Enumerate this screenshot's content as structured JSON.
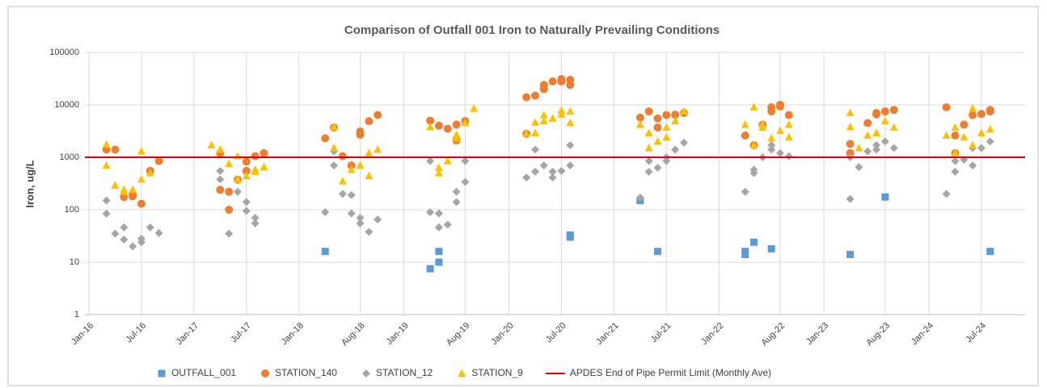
{
  "chart_data": {
    "type": "scatter",
    "title": "Comparison of Outfall 001 Iron to Naturally Prevailing Conditions",
    "y_label": "Iron, ug/L",
    "log_y": true,
    "grid": true,
    "legend": "bottom",
    "ylim": [
      1,
      100000
    ],
    "yticks": [
      1,
      10,
      100,
      1000,
      10000,
      100000
    ],
    "xlim": [
      "2016-01",
      "2024-12"
    ],
    "xticks": [
      {
        "value": "2016-01",
        "label": "Jan-16"
      },
      {
        "value": "2016-07",
        "label": "Jul-16"
      },
      {
        "value": "2017-01",
        "label": "Jan-17"
      },
      {
        "value": "2017-07",
        "label": "Jul-17"
      },
      {
        "value": "2018-01",
        "label": "Jan-18"
      },
      {
        "value": "2018-08",
        "label": "Aug-18"
      },
      {
        "value": "2019-01",
        "label": "Jan-19"
      },
      {
        "value": "2019-08",
        "label": "Aug-19"
      },
      {
        "value": "2020-01",
        "label": "Jan-20"
      },
      {
        "value": "2020-07",
        "label": "Jul-20"
      },
      {
        "value": "2021-01",
        "label": "Jan-21"
      },
      {
        "value": "2021-07",
        "label": "Jul-21"
      },
      {
        "value": "2022-01",
        "label": "Jan-22"
      },
      {
        "value": "2022-08",
        "label": "Aug-22"
      },
      {
        "value": "2023-01",
        "label": "Jan-23"
      },
      {
        "value": "2023-08",
        "label": "Aug-23"
      },
      {
        "value": "2024-01",
        "label": "Jan-24"
      },
      {
        "value": "2024-07",
        "label": "Jul-24"
      }
    ],
    "series": [
      {
        "name": "OUTFALL_001",
        "color": "#5b9bd5",
        "marker": "square",
        "x": [
          "2018-04",
          "2019-04",
          "2019-05",
          "2019-05",
          "2020-08",
          "2020-08",
          "2021-04",
          "2021-06",
          "2022-04",
          "2022-04",
          "2022-05",
          "2022-07",
          "2023-04",
          "2023-08",
          "2024-08"
        ],
        "values": [
          16,
          7.5,
          10,
          16,
          30,
          33,
          150,
          16,
          16,
          14,
          24,
          18,
          14,
          175,
          16
        ]
      },
      {
        "name": "STATION_140",
        "color": "#ed7d31",
        "marker": "circle",
        "x": [
          "2016-03",
          "2016-04",
          "2016-05",
          "2016-06",
          "2016-06",
          "2016-07",
          "2016-08",
          "2016-08",
          "2016-09",
          "2017-04",
          "2017-04",
          "2017-05",
          "2017-05",
          "2017-06",
          "2017-07",
          "2017-07",
          "2017-08",
          "2017-09",
          "2018-04",
          "2018-05",
          "2018-06",
          "2018-07",
          "2018-08",
          "2018-08",
          "2018-09",
          "2018-10",
          "2019-04",
          "2019-05",
          "2019-06",
          "2019-07",
          "2019-07",
          "2019-08",
          "2020-03",
          "2020-03",
          "2020-04",
          "2020-05",
          "2020-05",
          "2020-06",
          "2020-07",
          "2020-07",
          "2020-08",
          "2020-08",
          "2021-04",
          "2021-05",
          "2021-06",
          "2021-06",
          "2021-07",
          "2021-08",
          "2021-09",
          "2022-04",
          "2022-05",
          "2022-06",
          "2022-07",
          "2022-07",
          "2022-08",
          "2022-08",
          "2022-09",
          "2023-04",
          "2023-04",
          "2023-06",
          "2023-07",
          "2023-07",
          "2023-08",
          "2023-09",
          "2024-03",
          "2024-04",
          "2024-04",
          "2024-05",
          "2024-06",
          "2024-07",
          "2024-08",
          "2024-08"
        ],
        "values": [
          1400,
          1400,
          175,
          200,
          180,
          130,
          550,
          550,
          850,
          1200,
          240,
          220,
          100,
          375,
          550,
          830,
          1050,
          1200,
          2300,
          3700,
          1050,
          700,
          2700,
          3100,
          4900,
          6400,
          5000,
          4000,
          3500,
          2100,
          4200,
          4900,
          14000,
          2800,
          15000,
          20000,
          24000,
          28000,
          28000,
          31000,
          24000,
          30000,
          5700,
          7500,
          3700,
          5500,
          6400,
          6500,
          7000,
          2600,
          1700,
          4200,
          7500,
          9000,
          9300,
          10000,
          6400,
          1800,
          1200,
          4500,
          6600,
          7000,
          7500,
          8000,
          9000,
          1200,
          2600,
          4200,
          6400,
          6700,
          7500,
          8000
        ]
      },
      {
        "name": "STATION_12",
        "color": "#a5a5a5",
        "marker": "diamond",
        "x": [
          "2016-03",
          "2016-03",
          "2016-04",
          "2016-05",
          "2016-05",
          "2016-06",
          "2016-07",
          "2016-07",
          "2016-08",
          "2016-09",
          "2017-04",
          "2017-04",
          "2017-05",
          "2017-06",
          "2017-07",
          "2017-07",
          "2017-08",
          "2017-08",
          "2018-04",
          "2018-05",
          "2018-05",
          "2018-06",
          "2018-07",
          "2018-07",
          "2018-08",
          "2018-08",
          "2018-09",
          "2018-10",
          "2019-04",
          "2019-04",
          "2019-05",
          "2019-05",
          "2019-06",
          "2019-07",
          "2019-07",
          "2019-08",
          "2019-08",
          "2020-03",
          "2020-04",
          "2020-04",
          "2020-05",
          "2020-06",
          "2020-06",
          "2020-07",
          "2020-08",
          "2020-08",
          "2021-04",
          "2021-05",
          "2021-05",
          "2021-06",
          "2021-07",
          "2021-07",
          "2021-08",
          "2021-09",
          "2022-04",
          "2022-05",
          "2022-05",
          "2022-06",
          "2022-07",
          "2022-07",
          "2022-08",
          "2022-09",
          "2023-04",
          "2023-04",
          "2023-05",
          "2023-06",
          "2023-07",
          "2023-07",
          "2023-08",
          "2023-09",
          "2024-03",
          "2024-04",
          "2024-04",
          "2024-05",
          "2024-06",
          "2024-06",
          "2024-07",
          "2024-08"
        ],
        "values": [
          150,
          84,
          35,
          27,
          46,
          20,
          24,
          28,
          46,
          36,
          550,
          380,
          35,
          220,
          140,
          95,
          55,
          70,
          90,
          1300,
          700,
          200,
          85,
          190,
          70,
          55,
          38,
          65,
          850,
          90,
          85,
          46,
          52,
          220,
          140,
          340,
          850,
          410,
          1400,
          530,
          700,
          410,
          530,
          550,
          700,
          1700,
          170,
          850,
          530,
          630,
          1000,
          850,
          1400,
          1900,
          220,
          580,
          500,
          1000,
          1700,
          1400,
          1200,
          1050,
          160,
          1000,
          650,
          1300,
          1400,
          1700,
          2000,
          1500,
          200,
          850,
          530,
          900,
          700,
          1500,
          1500,
          2000
        ]
      },
      {
        "name": "STATION_9",
        "color": "#ffc000",
        "marker": "triangle",
        "x": [
          "2016-03",
          "2016-03",
          "2016-04",
          "2016-05",
          "2016-05",
          "2016-06",
          "2016-07",
          "2016-07",
          "2016-08",
          "2017-03",
          "2017-04",
          "2017-05",
          "2017-06",
          "2017-06",
          "2017-07",
          "2017-08",
          "2017-08",
          "2017-09",
          "2018-05",
          "2018-05",
          "2018-06",
          "2018-07",
          "2018-08",
          "2018-09",
          "2018-09",
          "2018-10",
          "2019-04",
          "2019-05",
          "2019-05",
          "2019-06",
          "2019-07",
          "2019-07",
          "2019-08",
          "2019-09",
          "2020-03",
          "2020-04",
          "2020-04",
          "2020-05",
          "2020-05",
          "2020-06",
          "2020-07",
          "2020-07",
          "2020-08",
          "2020-08",
          "2021-04",
          "2021-05",
          "2021-05",
          "2021-06",
          "2021-07",
          "2021-07",
          "2021-08",
          "2021-09",
          "2022-04",
          "2022-05",
          "2022-05",
          "2022-06",
          "2022-06",
          "2022-07",
          "2022-08",
          "2022-09",
          "2022-09",
          "2023-04",
          "2023-04",
          "2023-05",
          "2023-06",
          "2023-07",
          "2023-07",
          "2023-08",
          "2023-09",
          "2024-03",
          "2024-04",
          "2024-04",
          "2024-05",
          "2024-06",
          "2024-06",
          "2024-07",
          "2024-08"
        ],
        "values": [
          700,
          1750,
          290,
          240,
          220,
          240,
          1300,
          380,
          500,
          1700,
          1400,
          750,
          1050,
          380,
          440,
          530,
          580,
          650,
          3800,
          1500,
          350,
          580,
          700,
          440,
          1200,
          1400,
          3800,
          630,
          500,
          850,
          2300,
          2700,
          4500,
          8500,
          2800,
          4600,
          2900,
          6400,
          4900,
          5500,
          6600,
          7800,
          7500,
          4500,
          4200,
          2900,
          1500,
          2000,
          3700,
          2400,
          4900,
          7500,
          4200,
          9000,
          1700,
          3700,
          4200,
          2300,
          3200,
          4200,
          2400,
          3800,
          7000,
          1500,
          2600,
          2900,
          2900,
          4900,
          3700,
          2600,
          3700,
          1200,
          2400,
          8500,
          1700,
          2900,
          3400
        ]
      }
    ],
    "reference_line": {
      "name": "APDES End of Pipe Permit Limit (Monthly Ave)",
      "value": 1000,
      "color": "#e00000"
    }
  }
}
